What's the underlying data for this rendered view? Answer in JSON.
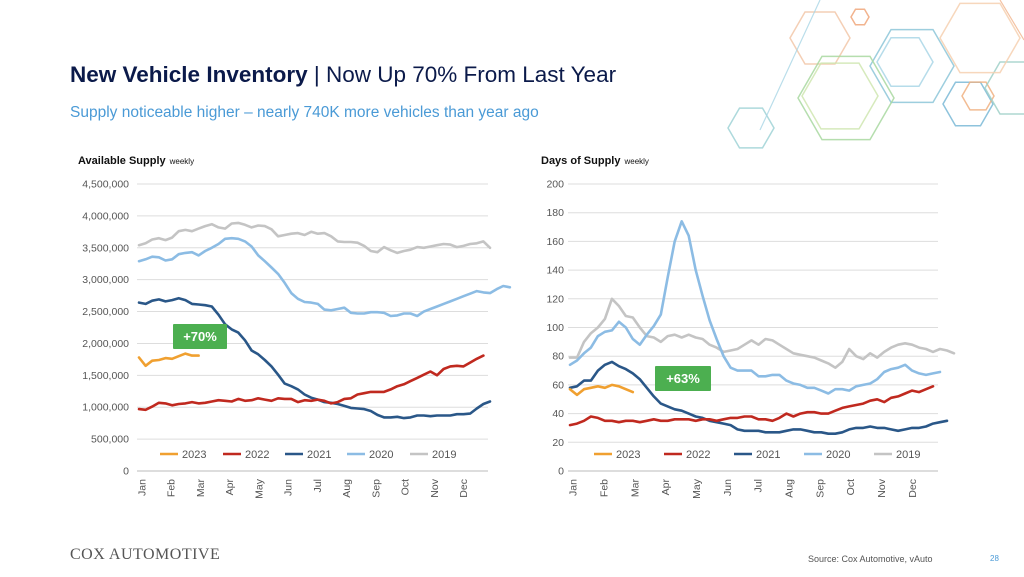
{
  "header": {
    "title_bold": "New Vehicle Inventory",
    "title_rest": " | Now Up 70% From Last Year",
    "subtitle": "Supply noticeable higher – nearly 740K more vehicles than year ago"
  },
  "footer": {
    "logo_text": "COX AUTOMOTIVE",
    "source": "Source: Cox Automotive, vAuto",
    "page": "28"
  },
  "colors": {
    "2023": "#f0a030",
    "2022": "#c0291f",
    "2021": "#2a5788",
    "2020": "#8cbce4",
    "2019": "#c4c4c4"
  },
  "chart_data": [
    {
      "type": "line",
      "title": "Available Supply",
      "subtitle": "weekly",
      "months": [
        "Jan",
        "Feb",
        "Mar",
        "Apr",
        "May",
        "Jun",
        "Jul",
        "Aug",
        "Sep",
        "Oct",
        "Nov",
        "Dec"
      ],
      "ylim": [
        0,
        4500000
      ],
      "yticks": [
        "0",
        "500,000",
        "1,000,000",
        "1,500,000",
        "2,000,000",
        "2,500,000",
        "3,000,000",
        "3,500,000",
        "4,000,000",
        "4,500,000"
      ],
      "grid": true,
      "legend": "bottom",
      "badge": "+70%",
      "series": [
        {
          "name": "2023",
          "values": [
            1780000,
            1650000,
            1730000,
            1740000,
            1770000,
            1760000,
            1800000,
            1840000,
            1810000,
            1810000
          ]
        },
        {
          "name": "2022",
          "values": [
            970000,
            960000,
            1010000,
            1070000,
            1060000,
            1030000,
            1050000,
            1060000,
            1080000,
            1060000,
            1070000,
            1090000,
            1110000,
            1100000,
            1090000,
            1130000,
            1100000,
            1110000,
            1140000,
            1120000,
            1100000,
            1140000,
            1130000,
            1130000,
            1080000,
            1110000,
            1100000,
            1120000,
            1100000,
            1060000,
            1080000,
            1130000,
            1140000,
            1200000,
            1220000,
            1240000,
            1240000,
            1240000,
            1280000,
            1330000,
            1360000,
            1410000,
            1460000,
            1510000,
            1560000,
            1500000,
            1600000,
            1640000,
            1650000,
            1640000,
            1700000,
            1760000,
            1810000
          ]
        },
        {
          "name": "2021",
          "values": [
            2640000,
            2620000,
            2670000,
            2690000,
            2660000,
            2680000,
            2710000,
            2680000,
            2620000,
            2610000,
            2600000,
            2580000,
            2450000,
            2300000,
            2220000,
            2170000,
            2050000,
            1890000,
            1830000,
            1740000,
            1640000,
            1510000,
            1370000,
            1330000,
            1280000,
            1200000,
            1150000,
            1120000,
            1080000,
            1070000,
            1050000,
            1020000,
            990000,
            980000,
            970000,
            940000,
            880000,
            840000,
            840000,
            850000,
            830000,
            840000,
            870000,
            870000,
            860000,
            870000,
            870000,
            870000,
            890000,
            890000,
            900000,
            980000,
            1050000,
            1090000
          ]
        },
        {
          "name": "2020",
          "values": [
            3290000,
            3320000,
            3360000,
            3350000,
            3300000,
            3320000,
            3400000,
            3420000,
            3430000,
            3380000,
            3450000,
            3500000,
            3560000,
            3640000,
            3650000,
            3640000,
            3600000,
            3520000,
            3380000,
            3290000,
            3190000,
            3090000,
            2950000,
            2790000,
            2700000,
            2650000,
            2640000,
            2620000,
            2530000,
            2520000,
            2540000,
            2560000,
            2480000,
            2470000,
            2470000,
            2490000,
            2490000,
            2480000,
            2430000,
            2440000,
            2470000,
            2470000,
            2430000,
            2500000,
            2540000,
            2580000,
            2620000,
            2660000,
            2700000,
            2740000,
            2780000,
            2820000,
            2800000,
            2790000,
            2850000,
            2900000,
            2880000
          ]
        },
        {
          "name": "2019",
          "values": [
            3540000,
            3570000,
            3630000,
            3650000,
            3620000,
            3660000,
            3760000,
            3780000,
            3760000,
            3800000,
            3840000,
            3870000,
            3820000,
            3800000,
            3880000,
            3890000,
            3860000,
            3820000,
            3850000,
            3840000,
            3790000,
            3680000,
            3700000,
            3720000,
            3730000,
            3700000,
            3750000,
            3720000,
            3730000,
            3680000,
            3600000,
            3590000,
            3590000,
            3580000,
            3530000,
            3450000,
            3430000,
            3510000,
            3460000,
            3420000,
            3450000,
            3470000,
            3510000,
            3500000,
            3520000,
            3540000,
            3560000,
            3550000,
            3510000,
            3530000,
            3560000,
            3570000,
            3600000,
            3500000
          ]
        }
      ]
    },
    {
      "type": "line",
      "title": "Days of Supply",
      "subtitle": "weekly",
      "months": [
        "Jan",
        "Feb",
        "Mar",
        "Apr",
        "May",
        "Jun",
        "Jul",
        "Aug",
        "Sep",
        "Oct",
        "Nov",
        "Dec"
      ],
      "ylim": [
        0,
        200
      ],
      "yticks": [
        "0",
        "20",
        "40",
        "60",
        "80",
        "100",
        "120",
        "140",
        "160",
        "180",
        "200"
      ],
      "grid": true,
      "legend": "bottom",
      "badge": "+63%",
      "series": [
        {
          "name": "2023",
          "values": [
            57,
            53,
            57,
            58,
            59,
            58,
            60,
            59,
            57,
            55
          ]
        },
        {
          "name": "2022",
          "values": [
            32,
            33,
            35,
            38,
            37,
            35,
            35,
            34,
            35,
            35,
            34,
            35,
            36,
            35,
            35,
            36,
            36,
            36,
            35,
            36,
            36,
            35,
            36,
            37,
            37,
            38,
            38,
            36,
            36,
            35,
            37,
            40,
            38,
            40,
            41,
            41,
            40,
            40,
            42,
            44,
            45,
            46,
            47,
            49,
            50,
            48,
            51,
            52,
            54,
            56,
            55,
            57,
            59
          ]
        },
        {
          "name": "2021",
          "values": [
            58,
            59,
            63,
            63,
            70,
            74,
            76,
            73,
            71,
            68,
            64,
            58,
            52,
            47,
            45,
            43,
            42,
            40,
            38,
            37,
            35,
            34,
            33,
            32,
            29,
            28,
            28,
            28,
            27,
            27,
            27,
            28,
            29,
            29,
            28,
            27,
            27,
            26,
            26,
            27,
            29,
            30,
            30,
            31,
            30,
            30,
            29,
            28,
            29,
            30,
            30,
            31,
            33,
            34,
            35
          ]
        },
        {
          "name": "2020",
          "values": [
            74,
            77,
            82,
            86,
            94,
            97,
            98,
            104,
            100,
            92,
            88,
            95,
            101,
            109,
            135,
            160,
            174,
            164,
            140,
            122,
            105,
            92,
            80,
            72,
            70,
            70,
            70,
            66,
            66,
            67,
            67,
            63,
            61,
            60,
            58,
            58,
            56,
            54,
            57,
            57,
            56,
            59,
            60,
            61,
            64,
            69,
            71,
            72,
            74,
            70,
            68,
            67,
            68,
            69
          ]
        },
        {
          "name": "2019",
          "values": [
            79,
            79,
            90,
            96,
            100,
            106,
            120,
            115,
            108,
            107,
            100,
            94,
            93,
            90,
            94,
            95,
            93,
            95,
            93,
            92,
            88,
            86,
            83,
            84,
            85,
            88,
            91,
            88,
            92,
            91,
            88,
            85,
            82,
            81,
            80,
            79,
            77,
            75,
            72,
            76,
            85,
            80,
            78,
            82,
            79,
            83,
            86,
            88,
            89,
            88,
            86,
            85,
            83,
            85,
            84,
            82
          ]
        }
      ]
    }
  ]
}
